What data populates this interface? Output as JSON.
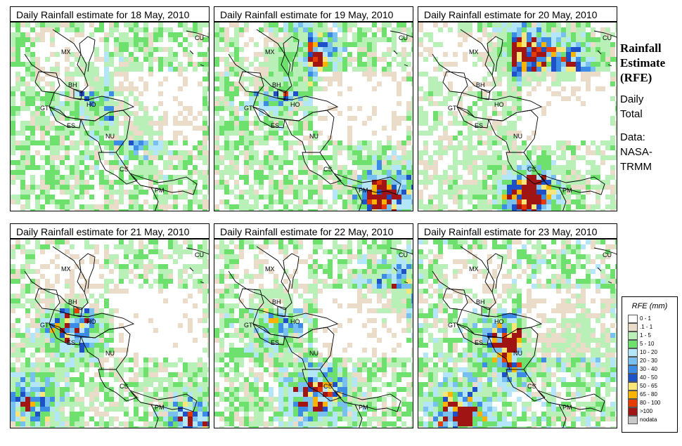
{
  "panels": [
    {
      "title": "Daily Rainfall estimate for  18 May, 2010",
      "seed": 18,
      "hot": [
        [
          0.6,
          0.55,
          0.5
        ],
        [
          0.4,
          0.35,
          0.4
        ]
      ],
      "base": 0.55
    },
    {
      "title": "Daily Rainfall estimate for  19 May, 2010",
      "seed": 19,
      "hot": [
        [
          0.45,
          0.15,
          0.9
        ],
        [
          0.85,
          0.9,
          1.0
        ],
        [
          0.3,
          0.3,
          0.6
        ]
      ],
      "base": 0.55
    },
    {
      "title": "Daily Rainfall estimate for  20 May, 2010",
      "seed": 20,
      "hot": [
        [
          0.5,
          0.15,
          1.1
        ],
        [
          0.55,
          0.9,
          1.2
        ],
        [
          0.75,
          0.2,
          0.7
        ]
      ],
      "base": 0.45
    },
    {
      "title": "Daily Rainfall estimate for  21 May, 2010",
      "seed": 21,
      "hot": [
        [
          0.3,
          0.45,
          0.8
        ],
        [
          0.1,
          0.85,
          0.7
        ],
        [
          0.9,
          0.95,
          0.8
        ]
      ],
      "base": 0.5
    },
    {
      "title": "Daily Rainfall estimate for  22 May, 2010",
      "seed": 22,
      "hot": [
        [
          0.5,
          0.8,
          0.9
        ],
        [
          0.3,
          0.4,
          0.5
        ],
        [
          0.9,
          0.25,
          0.6
        ]
      ],
      "base": 0.55
    },
    {
      "title": "Daily Rainfall estimate for  23 May, 2010",
      "seed": 23,
      "hot": [
        [
          0.45,
          0.55,
          0.9
        ],
        [
          0.2,
          0.9,
          0.8
        ],
        [
          0.8,
          0.5,
          0.6
        ]
      ],
      "base": 0.6
    }
  ],
  "country_labels": [
    "MX",
    "BH",
    "GT",
    "HO",
    "ES",
    "NU",
    "CS",
    "PM",
    "CU"
  ],
  "sidebar": {
    "title_line1": "Rainfall",
    "title_line2": "Estimate",
    "title_line3": "(RFE)",
    "line1": "Daily",
    "line2": "Total",
    "line3": "Data:",
    "line4": "NASA-",
    "line5": "TRMM"
  },
  "legend": {
    "title": "RFE (mm)",
    "items": [
      {
        "label": "0 - 1",
        "color": "#ffffff"
      },
      {
        "label": ".1 - 1",
        "color": "#eadcc8"
      },
      {
        "label": "1 - 5",
        "color": "#b8f0b8"
      },
      {
        "label": "5 - 10",
        "color": "#6ee06e"
      },
      {
        "label": "10 - 20",
        "color": "#b4e6fa"
      },
      {
        "label": "20 - 30",
        "color": "#78c0f0"
      },
      {
        "label": "30 - 40",
        "color": "#3c8ce6"
      },
      {
        "label": "40 - 50",
        "color": "#1e50c8"
      },
      {
        "label": "50 - 65",
        "color": "#fae678"
      },
      {
        "label": "65 - 80",
        "color": "#fab400"
      },
      {
        "label": "80 - 100",
        "color": "#e63c00"
      },
      {
        "label": ">100",
        "color": "#a01414"
      },
      {
        "label": "nodata",
        "color": "#c8c8c8"
      }
    ]
  }
}
